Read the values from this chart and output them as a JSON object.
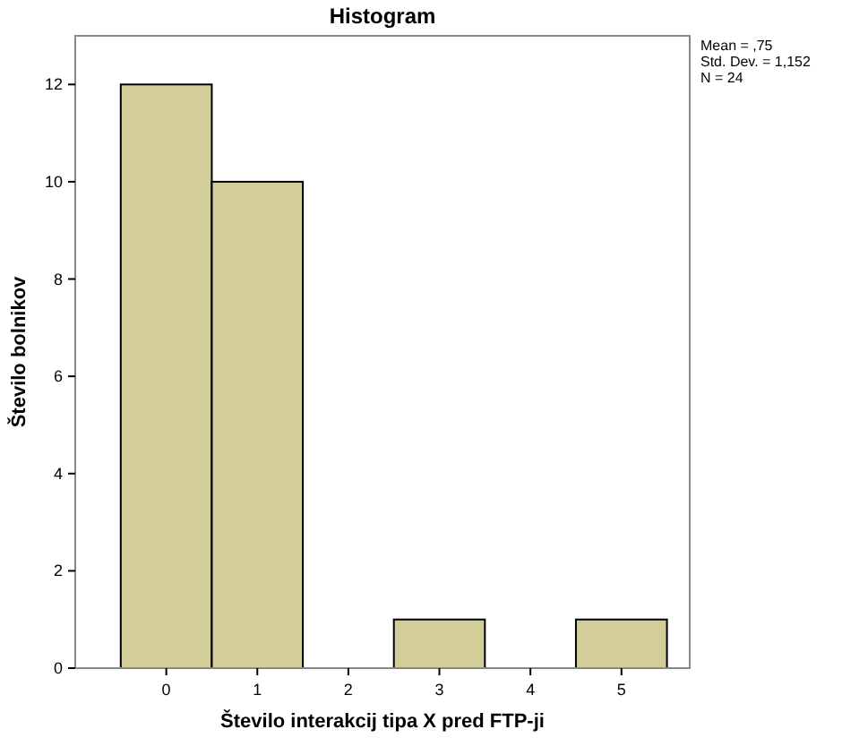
{
  "chart_data": {
    "type": "histogram",
    "title": "Histogram",
    "xlabel": "Število interakcij tipa X pred FTP-ji",
    "ylabel": "Število bolnikov",
    "bins": [
      -0.5,
      0.5,
      1.5,
      2.5,
      3.5,
      4.5,
      5.5
    ],
    "values": [
      12,
      10,
      0,
      1,
      0,
      1
    ],
    "color": "#d3ce99",
    "xlim": [
      -1,
      5.75
    ],
    "xticks": [
      0,
      1,
      2,
      3,
      4,
      5
    ],
    "ylim": [
      0,
      13
    ],
    "yticks": [
      0,
      2,
      4,
      6,
      8,
      10,
      12
    ],
    "annotations": [
      "Mean = ,75",
      "Std. Dev. = 1,152",
      "N = 24"
    ]
  }
}
